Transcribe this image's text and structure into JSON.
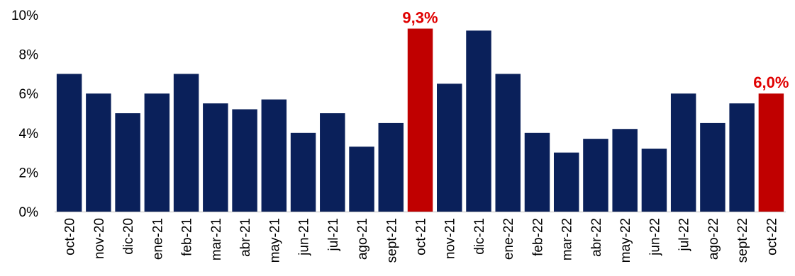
{
  "chart_data": {
    "type": "bar",
    "categories": [
      "oct-20",
      "nov-20",
      "dic-20",
      "ene-21",
      "feb-21",
      "mar-21",
      "abr-21",
      "may-21",
      "jun-21",
      "jul-21",
      "ago-21",
      "sept-21",
      "oct-21",
      "nov-21",
      "dic-21",
      "ene-22",
      "feb-22",
      "mar-22",
      "abr-22",
      "may-22",
      "jun-22",
      "jul-22",
      "ago-22",
      "sept-22",
      "oct-22"
    ],
    "values": [
      7.0,
      6.0,
      5.0,
      6.0,
      7.0,
      5.5,
      5.2,
      5.7,
      4.0,
      5.0,
      3.3,
      4.5,
      9.3,
      6.5,
      9.2,
      7.0,
      4.0,
      3.0,
      3.7,
      4.2,
      3.2,
      6.0,
      4.5,
      5.5,
      6.0
    ],
    "highlight": [
      12,
      24
    ],
    "data_labels": [
      {
        "index": 12,
        "text": "9,3%"
      },
      {
        "index": 24,
        "text": "6,0%"
      }
    ],
    "yticks": [
      "0%",
      "2%",
      "4%",
      "6%",
      "8%",
      "10%"
    ],
    "ylim": [
      0,
      10
    ],
    "grid": false,
    "title": "",
    "xlabel": "",
    "ylabel": "",
    "colors": {
      "bar": "#0a205a",
      "highlight": "#c00000",
      "label": "#e00000",
      "axis": "#bfbfbf"
    }
  }
}
